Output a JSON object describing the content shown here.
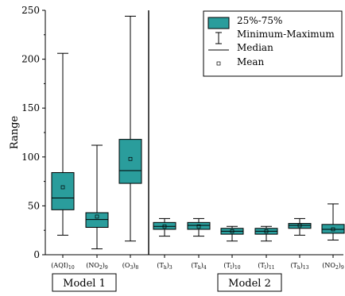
{
  "chart_data": {
    "type": "box",
    "ylabel": "Range",
    "ylim": [
      0,
      250
    ],
    "yticks": [
      0,
      50,
      100,
      150,
      200,
      250
    ],
    "box_color": "#2a9d9c",
    "legend": {
      "position": "top-right",
      "items": [
        "25%-75%",
        "Minimum-Maximum",
        "Median",
        "Mean"
      ]
    },
    "groups": [
      {
        "label": "Model 1",
        "categories": [
          0,
          1,
          2
        ]
      },
      {
        "label": "Model 2",
        "categories": [
          3,
          4,
          5,
          6,
          7,
          8
        ]
      }
    ],
    "categories": [
      {
        "base": "(AQI)",
        "sub": "10",
        "min": 20,
        "q1": 46,
        "median": 58,
        "q3": 84,
        "max": 206,
        "mean": 69
      },
      {
        "base": "(NO",
        "sub2": "2",
        "tail": ")",
        "sub": "9",
        "min": 6,
        "q1": 28,
        "median": 36,
        "q3": 43,
        "max": 112,
        "mean": 39
      },
      {
        "base": "(O",
        "sub2": "3",
        "tail": ")",
        "sub": "8",
        "min": 14,
        "q1": 73,
        "median": 86,
        "q3": 118,
        "max": 244,
        "mean": 98
      },
      {
        "base": "(T",
        "sub2": "h",
        "tail": ")",
        "sub": "3",
        "min": 19,
        "q1": 26,
        "median": 29,
        "q3": 33,
        "max": 37,
        "mean": 29
      },
      {
        "base": "(T",
        "sub2": "h",
        "tail": ")",
        "sub": "4",
        "min": 19,
        "q1": 26,
        "median": 30,
        "q3": 33,
        "max": 37,
        "mean": 29
      },
      {
        "base": "(T",
        "sub2": "l",
        "tail": ")",
        "sub": "10",
        "min": 14,
        "q1": 21,
        "median": 24,
        "q3": 27,
        "max": 29,
        "mean": 24
      },
      {
        "base": "(T",
        "sub2": "l",
        "tail": ")",
        "sub": "11",
        "min": 14,
        "q1": 21,
        "median": 24,
        "q3": 27,
        "max": 29,
        "mean": 24
      },
      {
        "base": "(T",
        "sub2": "h",
        "tail": ")",
        "sub": "13",
        "min": 20,
        "q1": 27,
        "median": 30,
        "q3": 32,
        "max": 37,
        "mean": 30
      },
      {
        "base": "(NO",
        "sub2": "2",
        "tail": ")",
        "sub": "9",
        "min": 15,
        "q1": 22,
        "median": 26,
        "q3": 31,
        "max": 52,
        "mean": 26
      }
    ]
  }
}
